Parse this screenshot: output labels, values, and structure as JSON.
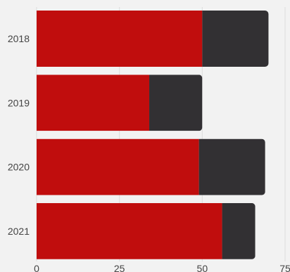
{
  "chart_data": {
    "type": "bar",
    "orientation": "horizontal",
    "stacked": true,
    "categories": [
      "2018",
      "2019",
      "2020",
      "2021"
    ],
    "series": [
      {
        "values": [
          50,
          34,
          49,
          56
        ],
        "color": "#c00d0d"
      },
      {
        "values": [
          20,
          16,
          20,
          10
        ],
        "color": "#323033"
      }
    ],
    "xlim": [
      0,
      75
    ],
    "x_ticks": [
      "0",
      "25",
      "50",
      "75"
    ],
    "grid": "vertical",
    "legend": "none"
  }
}
